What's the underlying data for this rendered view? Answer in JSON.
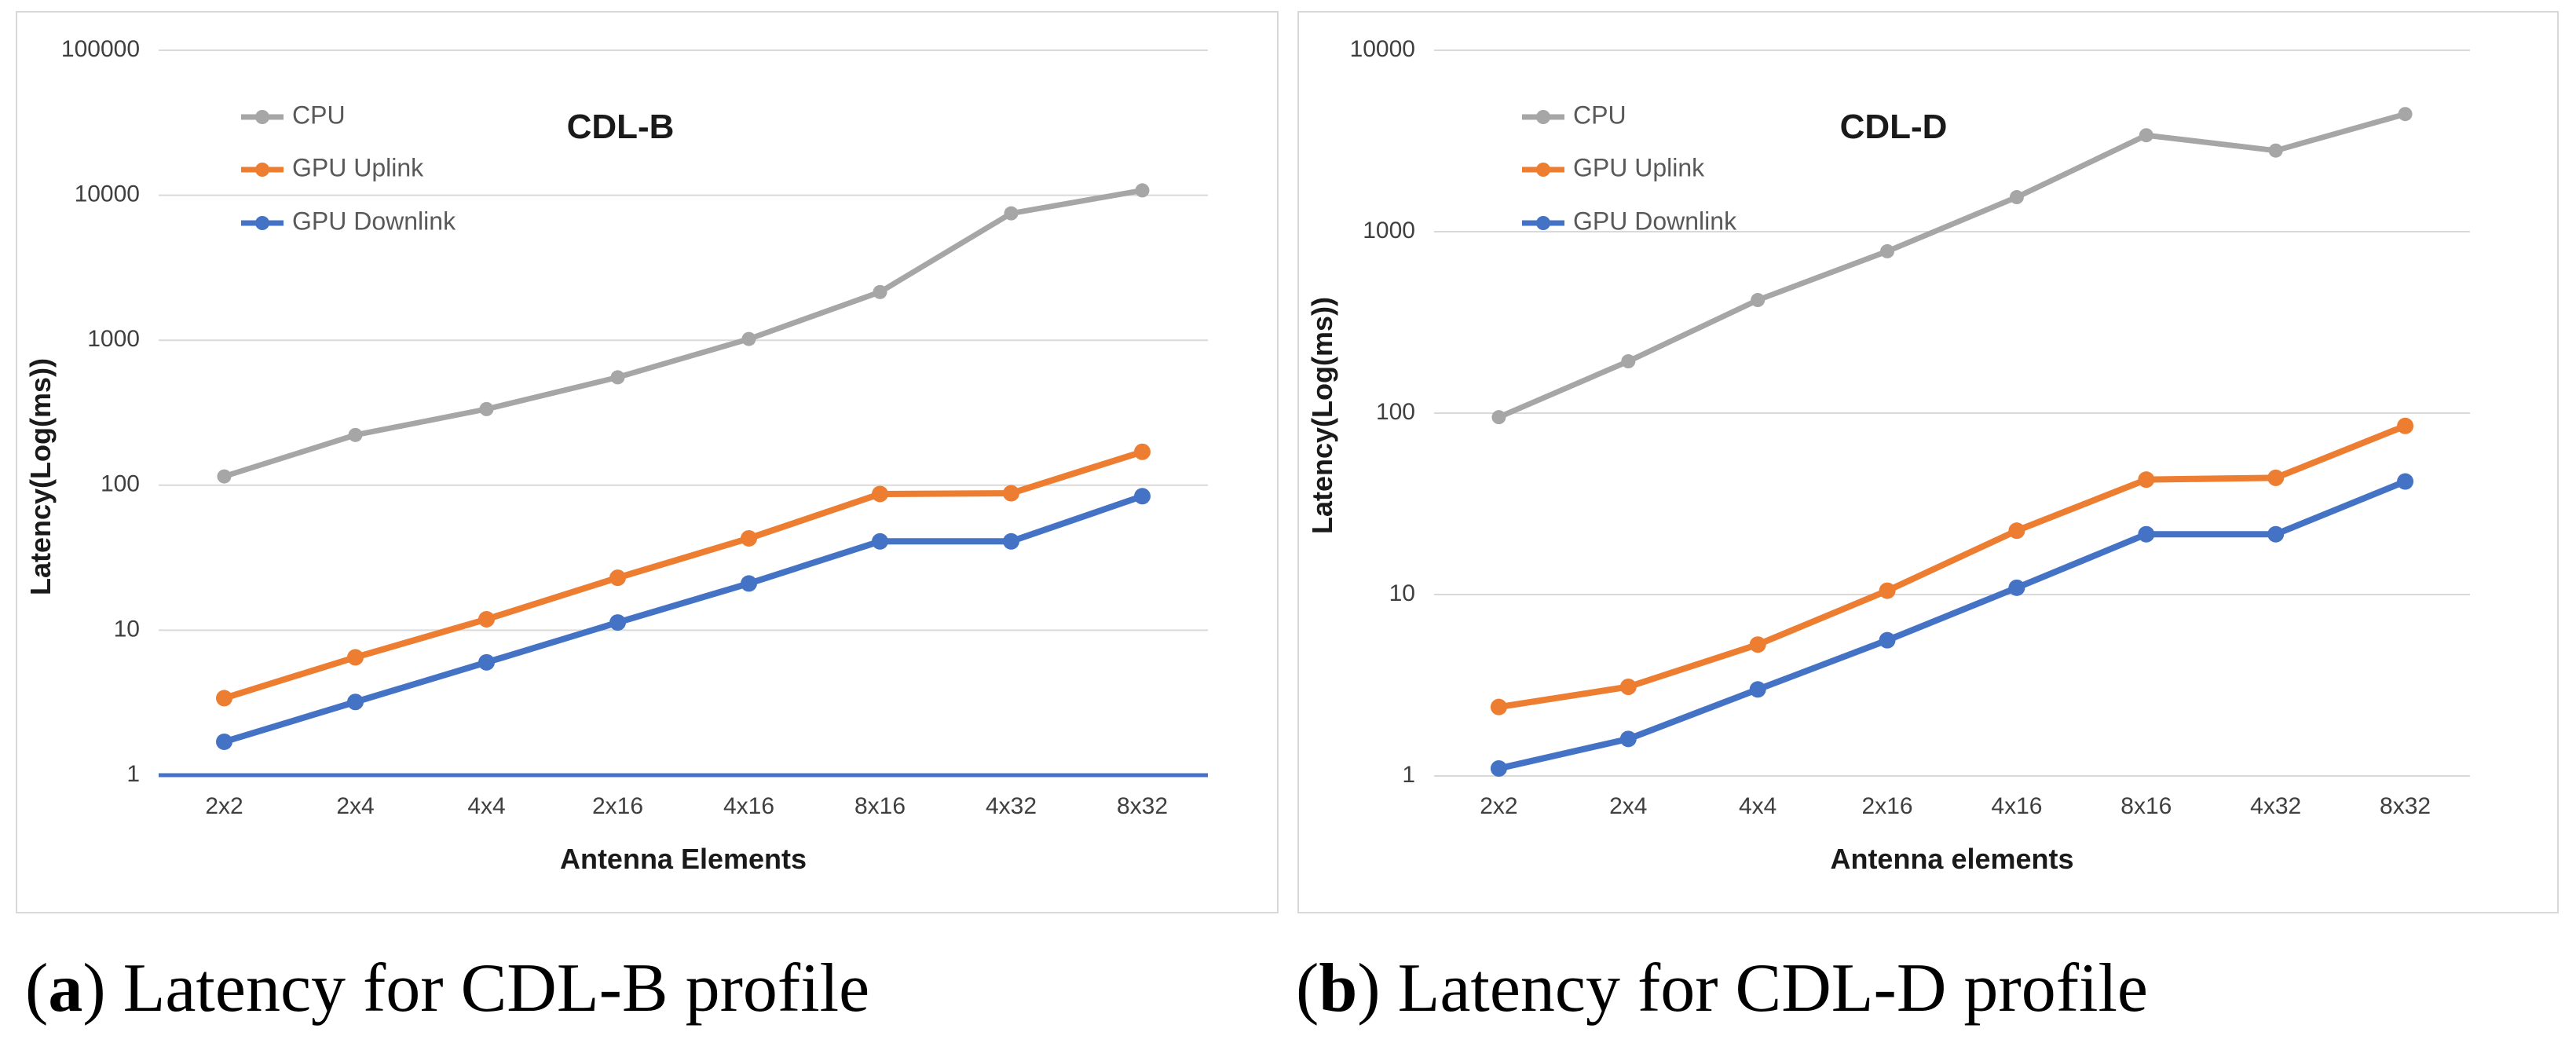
{
  "figure": {
    "background": "#ffffff",
    "panel_border_color": "#d9d9d9"
  },
  "colors": {
    "cpu": "#A6A6A6",
    "gpu_uplink": "#ED7D31",
    "gpu_downlink": "#4472C4",
    "gridline": "#D9D9D9",
    "tick_text": "#3f3f3f",
    "legend_text": "#595959",
    "title_text": "#1a1a1a",
    "axis_title_text": "#1a1a1a"
  },
  "chart_data": [
    {
      "type": "line",
      "title": "CDL-B",
      "xlabel": "Antenna Elements",
      "ylabel": "Latency(Log(ms))",
      "y_scale": "log",
      "ylim": [
        1,
        100000
      ],
      "y_ticks": [
        "100000",
        "10000",
        "1000",
        "100",
        "10",
        "1"
      ],
      "grid": "horizontal",
      "legend_position": "top-left-inside",
      "x_axis_line_color": "#4472C4",
      "x_axis_line_width": 5,
      "categories": [
        "2x2",
        "2x4",
        "4x4",
        "2x16",
        "4x16",
        "8x16",
        "4x32",
        "8x32"
      ],
      "series": [
        {
          "name": "CPU",
          "color_key": "cpu",
          "values": [
            115,
            222,
            335,
            555,
            1020,
            2150,
            7500,
            10800
          ]
        },
        {
          "name": "GPU Uplink",
          "color_key": "gpu_uplink",
          "values": [
            3.4,
            6.5,
            11.9,
            23,
            43,
            87,
            88,
            170
          ]
        },
        {
          "name": "GPU Downlink",
          "color_key": "gpu_downlink",
          "values": [
            1.7,
            3.2,
            6.0,
            11.3,
            21,
            41,
            41,
            84
          ]
        }
      ]
    },
    {
      "type": "line",
      "title": "CDL-D",
      "xlabel": "Antenna elements",
      "ylabel": "Latency(Log(ms))",
      "y_scale": "log",
      "ylim": [
        1,
        10000
      ],
      "y_ticks": [
        "10000",
        "1000",
        "100",
        "10",
        "1"
      ],
      "grid": "horizontal",
      "legend_position": "top-left-inside",
      "x_axis_line_color": "#D9D9D9",
      "x_axis_line_width": 2,
      "categories": [
        "2x2",
        "2x4",
        "4x4",
        "2x16",
        "4x16",
        "8x16",
        "4x32",
        "8x32"
      ],
      "series": [
        {
          "name": "CPU",
          "color_key": "cpu",
          "values": [
            95,
            193,
            420,
            780,
            1550,
            3400,
            2800,
            4450
          ]
        },
        {
          "name": "GPU Uplink",
          "color_key": "gpu_uplink",
          "values": [
            2.4,
            3.1,
            5.3,
            10.5,
            22.5,
            43,
            44,
            85
          ]
        },
        {
          "name": "GPU Downlink",
          "color_key": "gpu_downlink",
          "values": [
            1.1,
            1.6,
            3.0,
            5.6,
            10.9,
            21.5,
            21.5,
            42
          ]
        }
      ]
    }
  ],
  "captions": [
    {
      "open": "(",
      "letter": "a",
      "rest": ") Latency for CDL-B profile"
    },
    {
      "open": "(",
      "letter": "b",
      "rest": ") Latency for CDL-D profile"
    }
  ]
}
